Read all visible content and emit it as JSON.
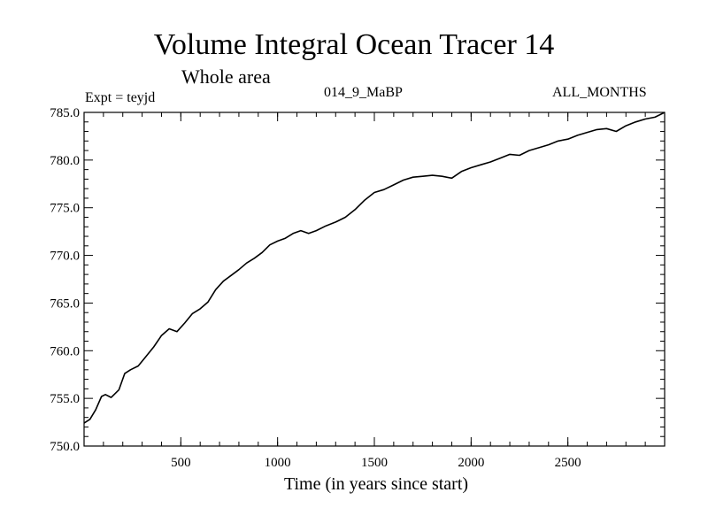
{
  "header": {
    "title": "Volume Integral Ocean Tracer 14",
    "subtitle": "Whole area",
    "experiment": "Expt = teyjd",
    "period": "014_9_MaBP",
    "months": "ALL_MONTHS"
  },
  "chart_data": {
    "type": "line",
    "title": "Volume Integral Ocean Tracer 14",
    "subtitle": "Whole area",
    "xlabel": "Time (in years since start)",
    "ylabel": "",
    "xlim": [
      0,
      3000
    ],
    "ylim": [
      750.0,
      785.0
    ],
    "xticks": [
      500,
      1000,
      1500,
      2000,
      2500
    ],
    "xtick_labels": [
      "500",
      "1000",
      "1500",
      "2000",
      "2500"
    ],
    "yticks": [
      750,
      755,
      760,
      765,
      770,
      775,
      780,
      785
    ],
    "ytick_labels": [
      "750.0",
      "755.0",
      "760.0",
      "765.0",
      "770.0",
      "775.0",
      "780.0",
      "785.0"
    ],
    "grid": false,
    "series": [
      {
        "name": "Tracer 14",
        "x": [
          0,
          30,
          60,
          90,
          110,
          140,
          180,
          210,
          240,
          280,
          320,
          360,
          400,
          440,
          480,
          520,
          560,
          600,
          640,
          680,
          720,
          760,
          800,
          840,
          880,
          920,
          960,
          1000,
          1040,
          1080,
          1120,
          1160,
          1200,
          1250,
          1300,
          1350,
          1400,
          1450,
          1500,
          1550,
          1600,
          1650,
          1700,
          1750,
          1800,
          1850,
          1900,
          1950,
          2000,
          2050,
          2100,
          2150,
          2200,
          2250,
          2300,
          2350,
          2400,
          2450,
          2500,
          2550,
          2600,
          2650,
          2700,
          2750,
          2800,
          2850,
          2900,
          2950,
          3000
        ],
        "y": [
          752.4,
          752.8,
          753.8,
          755.2,
          755.4,
          755.1,
          755.9,
          757.6,
          758.0,
          758.4,
          759.4,
          760.4,
          761.6,
          762.3,
          762.0,
          762.9,
          763.9,
          764.4,
          765.1,
          766.4,
          767.3,
          767.9,
          768.5,
          769.2,
          769.7,
          770.3,
          771.1,
          771.5,
          771.8,
          772.3,
          772.6,
          772.3,
          772.6,
          773.1,
          773.5,
          774.0,
          774.8,
          775.8,
          776.6,
          776.9,
          777.4,
          777.9,
          778.2,
          778.3,
          778.4,
          778.3,
          778.1,
          778.8,
          779.2,
          779.5,
          779.8,
          780.2,
          780.6,
          780.5,
          781.0,
          781.3,
          781.6,
          782.0,
          782.2,
          782.6,
          782.9,
          783.2,
          783.3,
          783.0,
          783.6,
          784.0,
          784.3,
          784.5,
          785.0
        ]
      }
    ]
  }
}
